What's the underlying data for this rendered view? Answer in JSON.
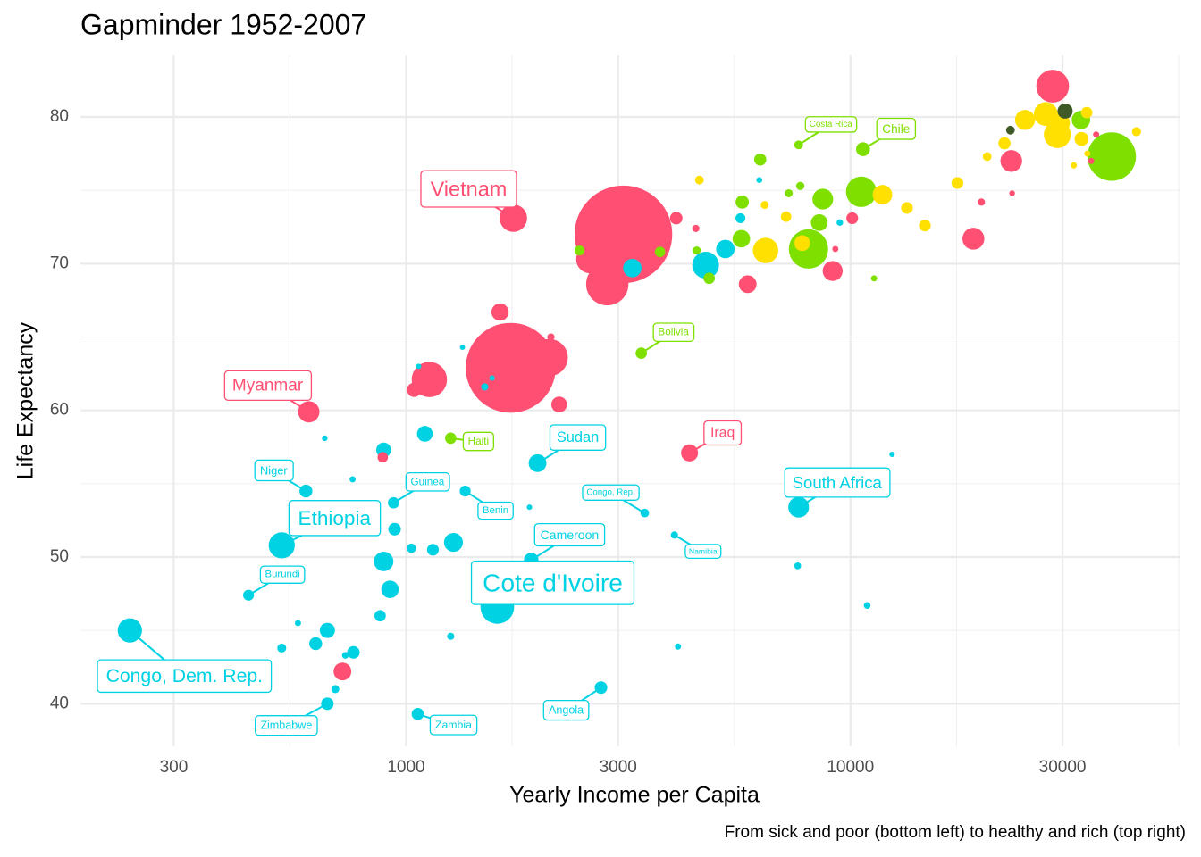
{
  "chart_data": {
    "type": "scatter",
    "title": "Gapminder  1952-2007",
    "x_label": "Yearly Income per Capita",
    "y_label": "Life Expectancy",
    "caption": "From sick  and poor (bottom left) to healthy and rich (top right)",
    "log_x": true,
    "grid": true,
    "xlim": [
      185,
      55000
    ],
    "ylim": [
      37.1,
      84.2
    ],
    "xticks": [
      300,
      1000,
      3000,
      10000,
      30000
    ],
    "yticks": [
      40,
      50,
      60,
      70,
      80
    ],
    "x": [
      3083,
      1719,
      38700,
      2836,
      8043,
      2099,
      1128,
      1604,
      28500,
      10570,
      2597,
      1743,
      29200,
      4721,
      525,
      6440,
      239,
      18900,
      27500,
      29300,
      24700,
      23000,
      604,
      7643,
      8662,
      9117,
      11800,
      890,
      1278,
      33000,
      3229,
      5229,
      5870,
      719,
      1976,
      920,
      5680,
      1627,
      4343,
      8505,
      1102,
      2210,
      7785,
      30400,
      665,
      890,
      1912,
      1042,
      942,
      33100,
      10670,
      5706,
      595,
      626,
      665,
      2745,
      761,
      4053,
      1062,
      6264,
      22200,
      1149,
      17400,
      13400,
      14700,
      10090,
      937,
      3382,
      1260,
      4808,
      874,
      34000,
      442,
      1358,
      3746,
      886,
      7162,
      3728,
      2456,
      5654,
      1028,
      44000,
      29700,
      525,
      4571,
      22900,
      7643,
      20300,
      3444,
      7708,
      7263,
      4508,
      693,
      6412,
      4487,
      19700,
      1260,
      4016,
      2118,
      1503,
      7606,
      10900,
      730,
      9460,
      35700,
      34800,
      9244,
      758,
      4091,
      11300,
      31800,
      34100,
      571,
      6235,
      656,
      23100,
      1895,
      12400,
      1561,
      1067,
      1339
    ],
    "y": [
      72.0,
      62.9,
      77.3,
      68.6,
      71.0,
      63.6,
      62.1,
      46.6,
      82.1,
      74.9,
      70.3,
      73.1,
      78.8,
      69.9,
      50.8,
      70.9,
      45.0,
      71.7,
      80.2,
      79.6,
      79.8,
      77.0,
      59.9,
      53.4,
      74.4,
      69.5,
      74.7,
      49.7,
      51.0,
      79.8,
      69.7,
      71.0,
      68.6,
      42.2,
      56.4,
      47.8,
      71.7,
      66.7,
      57.1,
      72.8,
      58.4,
      60.4,
      71.4,
      80.4,
      45.0,
      57.3,
      49.8,
      61.4,
      51.9,
      78.5,
      77.8,
      74.2,
      54.5,
      44.1,
      40.0,
      41.1,
      43.5,
      73.1,
      39.3,
      77.1,
      78.2,
      50.5,
      75.5,
      73.8,
      72.6,
      73.1,
      53.7,
      63.9,
      58.1,
      69.0,
      46.0,
      80.3,
      47.4,
      54.5,
      71.2,
      56.8,
      73.2,
      70.8,
      70.9,
      73.1,
      50.6,
      79.0,
      81.5,
      43.8,
      75.7,
      79.1,
      78.1,
      77.3,
      53.0,
      75.3,
      74.8,
      70.9,
      41.0,
      74.0,
      72.4,
      74.2,
      44.6,
      51.5,
      65.0,
      61.6,
      49.4,
      46.7,
      43.3,
      72.8,
      78.8,
      77.0,
      71.0,
      55.3,
      43.9,
      69.0,
      76.7,
      77.5,
      45.5,
      75.7,
      58.1,
      74.8,
      53.4,
      57.0,
      62.2,
      63.0,
      64.3
    ],
    "sizes": [
      1318,
      1110,
      301,
      224,
      190,
      169,
      150,
      135,
      127,
      108,
      91,
      85,
      82,
      80,
      76,
      71,
      64,
      50,
      61,
      61,
      40,
      49,
      47,
      44,
      44,
      40,
      38,
      38,
      35,
      33,
      33,
      33,
      30,
      30,
      30,
      29,
      29,
      28,
      27,
      26,
      22,
      22,
      22,
      20,
      20,
      19,
      18,
      17,
      12,
      16,
      16,
      14,
      13,
      13,
      12,
      12,
      12,
      12,
      11,
      11,
      11,
      10,
      10,
      10,
      10,
      10,
      9,
      9,
      9,
      9,
      9,
      9,
      8,
      8,
      8,
      7,
      7,
      7,
      6,
      6,
      5,
      4.6,
      4.5,
      4.4,
      4,
      4,
      4,
      4,
      3.8,
      3.4,
      3,
      3,
      3,
      3,
      2,
      2,
      2,
      2,
      2,
      2,
      1.6,
      1.5,
      1.5,
      1.3,
      1,
      1,
      1,
      1,
      1,
      1,
      1,
      1,
      1,
      0.8,
      0.7,
      0.7,
      0.5,
      0.5,
      0.5,
      0.5,
      0.4
    ],
    "colors": [
      "#ff4f72",
      "#ff4f72",
      "#7fe000",
      "#ff4f72",
      "#7fe000",
      "#ff4f72",
      "#ff4f72",
      "#00d2e3",
      "#ff4f72",
      "#7fe000",
      "#ff4f72",
      "#ff4f72",
      "#ffe000",
      "#00d2e3",
      "#00d2e3",
      "#ffe000",
      "#00d2e3",
      "#ff4f72",
      "#ffe000",
      "#ffe000",
      "#ffe000",
      "#ff4f72",
      "#ff4f72",
      "#00d2e3",
      "#7fe000",
      "#ff4f72",
      "#ffe000",
      "#00d2e3",
      "#00d2e3",
      "#7fe000",
      "#00d2e3",
      "#00d2e3",
      "#ff4f72",
      "#ff4f72",
      "#00d2e3",
      "#00d2e3",
      "#7fe000",
      "#ff4f72",
      "#ff4f72",
      "#7fe000",
      "#00d2e3",
      "#ff4f72",
      "#ffe000",
      "#3f5a26",
      "#00d2e3",
      "#00d2e3",
      "#00d2e3",
      "#ff4f72",
      "#00d2e3",
      "#ffe000",
      "#7fe000",
      "#7fe000",
      "#00d2e3",
      "#00d2e3",
      "#00d2e3",
      "#00d2e3",
      "#00d2e3",
      "#ff4f72",
      "#00d2e3",
      "#7fe000",
      "#ffe000",
      "#00d2e3",
      "#ffe000",
      "#ffe000",
      "#ffe000",
      "#ff4f72",
      "#00d2e3",
      "#7fe000",
      "#7fe000",
      "#7fe000",
      "#00d2e3",
      "#ffe000",
      "#00d2e3",
      "#00d2e3",
      "#ff4f72",
      "#ff4f72",
      "#ffe000",
      "#7fe000",
      "#7fe000",
      "#00d2e3",
      "#00d2e3",
      "#ffe000",
      "#ff4f72",
      "#00d2e3",
      "#ffe000",
      "#3f5a26",
      "#7fe000",
      "#ffe000",
      "#00d2e3",
      "#7fe000",
      "#7fe000",
      "#7fe000",
      "#00d2e3",
      "#ffe000",
      "#ff4f72",
      "#ff4f72",
      "#00d2e3",
      "#00d2e3",
      "#ff4f72",
      "#00d2e3",
      "#00d2e3",
      "#00d2e3",
      "#00d2e3",
      "#00d2e3",
      "#ff4f72",
      "#ff4f72",
      "#ff4f72",
      "#00d2e3",
      "#00d2e3",
      "#7fe000",
      "#ffe000",
      "#ffe000",
      "#00d2e3",
      "#00d2e3",
      "#00d2e3",
      "#ff4f72",
      "#00d2e3",
      "#00d2e3",
      "#00d2e3",
      "#00d2e3",
      "#00d2e3"
    ],
    "labels": [
      null,
      null,
      null,
      null,
      null,
      null,
      null,
      "Cote d'Ivoire",
      null,
      null,
      null,
      "Vietnam",
      null,
      null,
      "Ethiopia",
      null,
      "Congo, Dem. Rep.",
      null,
      null,
      null,
      null,
      null,
      "Myanmar",
      "South Africa",
      null,
      null,
      null,
      null,
      null,
      null,
      null,
      null,
      null,
      null,
      "Sudan",
      null,
      null,
      null,
      "Iraq",
      null,
      null,
      null,
      null,
      null,
      null,
      null,
      "Cameroon",
      null,
      null,
      null,
      "Chile",
      null,
      "Niger",
      null,
      "Zimbabwe",
      "Angola",
      null,
      null,
      "Zambia",
      null,
      null,
      null,
      null,
      null,
      null,
      null,
      "Guinea",
      "Bolivia",
      "Haiti",
      null,
      null,
      null,
      "Burundi",
      "Benin",
      null,
      null,
      null,
      null,
      null,
      null,
      null,
      null,
      null,
      null,
      null,
      null,
      "Costa Rica",
      null,
      "Congo, Rep.",
      null,
      null,
      null,
      null,
      null,
      null,
      null,
      null,
      "Namibia",
      null,
      null,
      null,
      null,
      null,
      null,
      null,
      null,
      null,
      null,
      null,
      null,
      null,
      null,
      null,
      null,
      null,
      null,
      null,
      null,
      null,
      null,
      null
    ]
  }
}
